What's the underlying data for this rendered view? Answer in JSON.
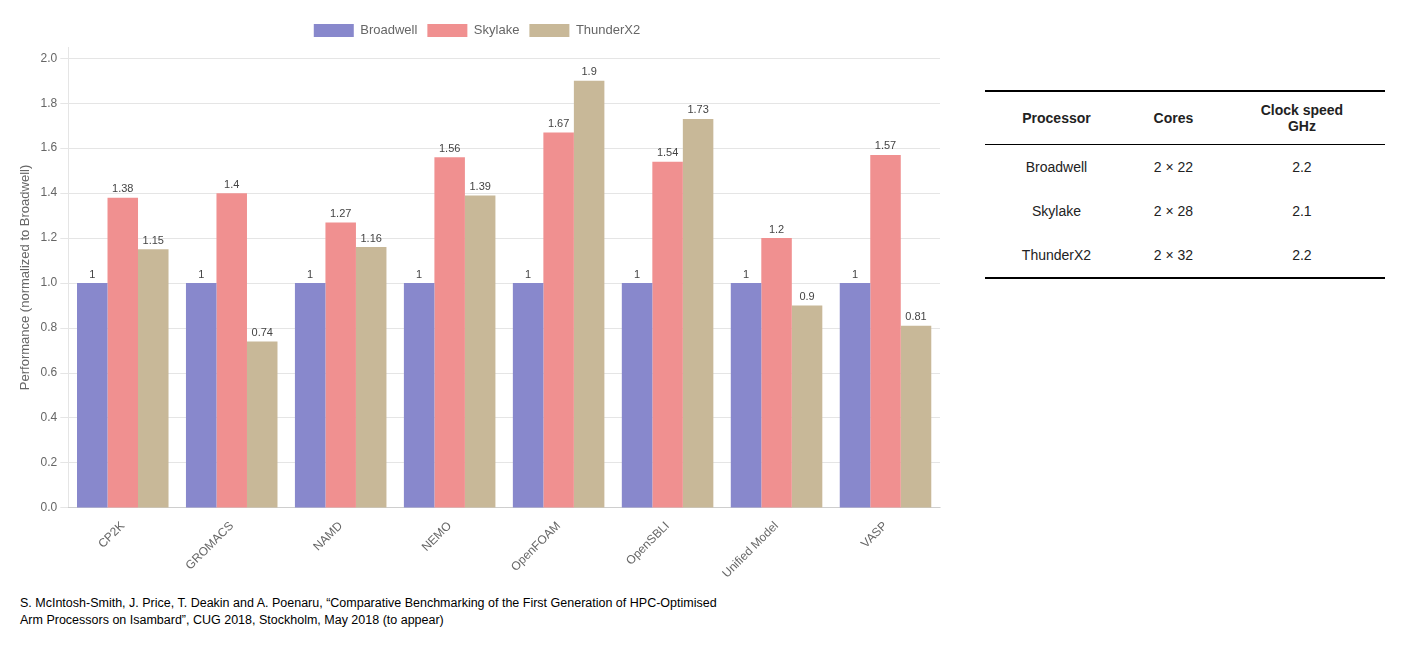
{
  "chart_data": {
    "type": "bar",
    "categories": [
      "CP2K",
      "GROMACS",
      "NAMD",
      "NEMO",
      "OpenFOAM",
      "OpenSBLI",
      "Unified Model",
      "VASP"
    ],
    "series": [
      {
        "name": "Broadwell",
        "color": "#8888cc",
        "values": [
          1,
          1,
          1,
          1,
          1,
          1,
          1,
          1
        ]
      },
      {
        "name": "Skylake",
        "color": "#f09090",
        "values": [
          1.38,
          1.4,
          1.27,
          1.56,
          1.67,
          1.54,
          1.2,
          1.57
        ]
      },
      {
        "name": "ThunderX2",
        "color": "#c8b898",
        "values": [
          1.15,
          0.74,
          1.16,
          1.39,
          1.9,
          1.73,
          0.9,
          0.81
        ]
      }
    ],
    "ylabel": "Performance (normalized to Broadwell)",
    "ylim": [
      0,
      2.05
    ],
    "yticks": [
      {
        "value": 0,
        "label": "0.0"
      },
      0.2,
      0.4,
      0.6,
      0.8,
      {
        "value": 1.0,
        "label": "1.0"
      },
      1.2,
      1.4,
      1.6,
      1.8,
      {
        "value": 2.0,
        "label": "2.0"
      }
    ],
    "grid": true,
    "legend": "top",
    "data_labels": true,
    "table": {
      "header": [
        "Processor",
        "Cores",
        "Clock speed\nGHz"
      ],
      "rows": [
        [
          "Broadwell",
          "2 × 22",
          "2.2"
        ],
        [
          "Skylake",
          "2 × 28",
          "2.1"
        ],
        [
          "ThunderX2",
          "2 × 32",
          "2.2"
        ]
      ]
    },
    "footnote": "S. McIntosh-Smith, J. Price, T. Deakin and A. Poenaru, “Comparative Benchmarking of the First Generation of HPC-Optimised\nArm Processors on Isambard”, CUG 2018, Stockholm, May 2018 (to appear)"
  }
}
